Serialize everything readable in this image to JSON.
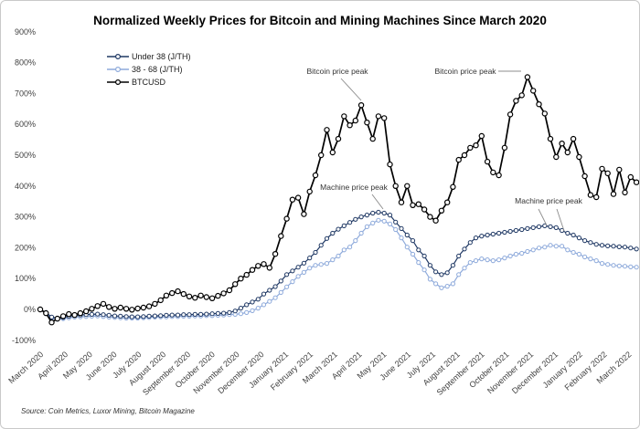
{
  "title": "Normalized Weekly Prices for Bitcoin and Mining Machines Since March 2020",
  "source_note": "Source: Coin Metrics, Luxor Mining, Bitcoin Magazine",
  "colors": {
    "under38": "#1F3864",
    "mid_range": "#8EAADB",
    "btcusd": "#000000",
    "axis_text": "#404040",
    "leader_line": "#8c8c8c"
  },
  "legend": {
    "position": "top-left",
    "entries": [
      {
        "label": "Under 38 (J/TH)",
        "color_key": "under38"
      },
      {
        "label": "38 - 68 (J/TH)",
        "color_key": "mid_range"
      },
      {
        "label": "BTCUSD",
        "color_key": "btcusd"
      }
    ]
  },
  "chart_data": {
    "type": "line",
    "title": "Normalized Weekly Prices for Bitcoin and Mining Machines Since March 2020",
    "xlabel": "",
    "ylabel": "",
    "ylim": [
      -100,
      900
    ],
    "grid": false,
    "legend_position": "top-left",
    "y_tick_values": [
      900,
      800,
      700,
      600,
      500,
      400,
      300,
      200,
      100,
      0,
      -100
    ],
    "y_tick_labels": [
      "900%",
      "800%",
      "700%",
      "600%",
      "500%",
      "400%",
      "300%",
      "200%",
      "100%",
      "0%",
      "-100%"
    ],
    "categories": [
      "March 2020",
      "April 2020",
      "May 2020",
      "June 2020",
      "July 2020",
      "August 2020",
      "September 2020",
      "October 2020",
      "November 2020",
      "December 2020",
      "January 2021",
      "February 2021",
      "March 2021",
      "April 2021",
      "May 2021",
      "June 2021",
      "July 2021",
      "August 2021",
      "September 2021",
      "October 2021",
      "November 2021",
      "December 2021",
      "January 2022",
      "February 2022",
      "March 2022"
    ],
    "x_unit": "weekly points, percent change since March 2020",
    "series": [
      {
        "name": "38 - 68 (J/TH)",
        "color_key": "mid_range",
        "values": [
          0,
          -14,
          -28,
          -32,
          -30,
          -27,
          -25,
          -24,
          -23,
          -22,
          -21,
          -23,
          -25,
          -26,
          -27,
          -28,
          -28,
          -28,
          -27,
          -26,
          -25,
          -24,
          -24,
          -23,
          -23,
          -22,
          -22,
          -21,
          -21,
          -20,
          -20,
          -19,
          -18,
          -17,
          -16,
          -14,
          -10,
          -4,
          4,
          15,
          26,
          38,
          55,
          73,
          90,
          107,
          120,
          134,
          143,
          146,
          149,
          161,
          173,
          193,
          202,
          223,
          247,
          268,
          280,
          289,
          286,
          277,
          259,
          232,
          202,
          179,
          152,
          128,
          98,
          83,
          70,
          75,
          83,
          113,
          134,
          152,
          158,
          164,
          161,
          158,
          161,
          167,
          173,
          179,
          182,
          188,
          193,
          199,
          202,
          208,
          205,
          205,
          193,
          185,
          179,
          170,
          164,
          158,
          149,
          146,
          143,
          141,
          140,
          138,
          137
        ]
      },
      {
        "name": "Under 38 (J/TH)",
        "color_key": "under38",
        "values": [
          0,
          -10,
          -25,
          -28,
          -26,
          -22,
          -20,
          -18,
          -17,
          -16,
          -15,
          -17,
          -19,
          -21,
          -22,
          -23,
          -24,
          -24,
          -23,
          -22,
          -21,
          -20,
          -19,
          -18,
          -18,
          -17,
          -17,
          -16,
          -16,
          -15,
          -14,
          -13,
          -12,
          -10,
          -5,
          4,
          15,
          24,
          33,
          50,
          62,
          74,
          92,
          113,
          125,
          137,
          150,
          167,
          185,
          208,
          230,
          247,
          260,
          271,
          282,
          292,
          300,
          306,
          312,
          315,
          312,
          306,
          283,
          262,
          241,
          223,
          193,
          173,
          143,
          122,
          113,
          119,
          143,
          173,
          196,
          217,
          232,
          238,
          241,
          244,
          247,
          250,
          253,
          256,
          259,
          262,
          265,
          268,
          271,
          268,
          265,
          256,
          247,
          241,
          232,
          223,
          217,
          211,
          208,
          206,
          205,
          203,
          202,
          199,
          196
        ]
      },
      {
        "name": "BTCUSD",
        "color_key": "btcusd",
        "values": [
          0,
          -12,
          -42,
          -30,
          -22,
          -15,
          -18,
          -12,
          -6,
          2,
          11,
          18,
          8,
          2,
          6,
          2,
          -1,
          3,
          6,
          10,
          18,
          30,
          45,
          53,
          59,
          50,
          42,
          38,
          45,
          40,
          36,
          44,
          52,
          62,
          82,
          100,
          112,
          128,
          141,
          147,
          135,
          180,
          238,
          294,
          356,
          362,
          309,
          382,
          435,
          500,
          582,
          509,
          553,
          626,
          597,
          612,
          662,
          606,
          553,
          626,
          620,
          470,
          400,
          347,
          400,
          338,
          341,
          324,
          300,
          288,
          320,
          347,
          397,
          485,
          500,
          524,
          532,
          562,
          479,
          444,
          435,
          524,
          632,
          676,
          694,
          753,
          709,
          665,
          635,
          553,
          494,
          538,
          509,
          553,
          494,
          432,
          371,
          364,
          456,
          441,
          374,
          453,
          379,
          429,
          412
        ]
      }
    ],
    "annotations": [
      {
        "text": "Bitcoin price peak",
        "points_to": "April 2021 BTCUSD peak"
      },
      {
        "text": "Bitcoin price peak",
        "points_to": "November 2021 BTCUSD peak"
      },
      {
        "text": "Machine price peak",
        "points_to": "May 2021 machine price peak"
      },
      {
        "text": "Machine price peak",
        "points_to": "November-December 2021 machine price peak"
      }
    ]
  }
}
